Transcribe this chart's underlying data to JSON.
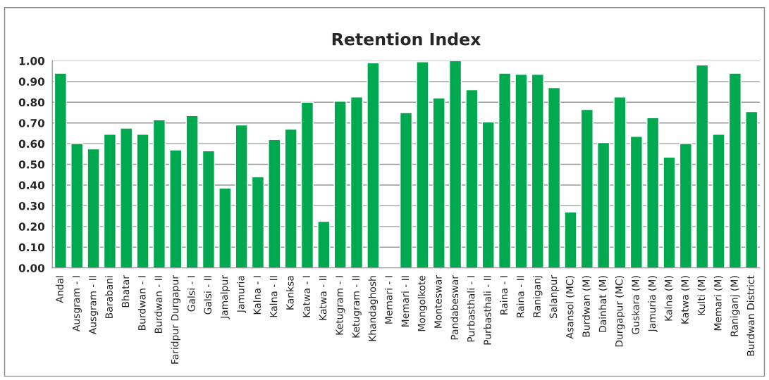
{
  "chart_data": {
    "type": "bar",
    "title": "Retention Index",
    "categories": [
      "Andal",
      "Ausgram - I",
      "Ausgram - II",
      "Barabani",
      "Bhatar",
      "Burdwan - I",
      "Burdwan - II",
      "Faridpur Durgapur",
      "Galsi - I",
      "Galsi - II",
      "Jamalpur",
      "Jamuria",
      "Kalna - I",
      "Kalna - II",
      "Kanksa",
      "Katwa - I",
      "Katwa - II",
      "Ketugram - I",
      "Ketugram - II",
      "Khandaghosh",
      "Memari - I",
      "Memari - II",
      "Mongolkote",
      "Monteswar",
      "Pandabeswar",
      "Purbasthali - I",
      "Purbasthali - II",
      "Raina - I",
      "Raina - II",
      "Raniganj",
      "Salanpur",
      "Asansol (MC)",
      "Burdwan (M)",
      "Dainhat (M)",
      "Durgapur (MC)",
      "Guskara (M)",
      "Jamuria (M)",
      "Kalna (M)",
      "Katwa (M)",
      "Kulti (M)",
      "Memari (M)",
      "Raniganj (M)",
      "Burdwan District"
    ],
    "values": [
      0.94,
      0.6,
      0.575,
      0.645,
      0.675,
      0.645,
      0.715,
      0.57,
      0.735,
      0.565,
      0.385,
      0.69,
      0.44,
      0.62,
      0.67,
      0.8,
      0.225,
      0.805,
      0.825,
      0.99,
      null,
      0.75,
      0.995,
      0.82,
      1.0,
      0.86,
      0.705,
      0.94,
      0.935,
      0.935,
      0.87,
      0.27,
      0.765,
      0.605,
      0.825,
      0.635,
      0.725,
      0.535,
      0.6,
      0.98,
      0.645,
      0.94,
      0.755
    ],
    "color": "#00a84f",
    "ylim": [
      0,
      1
    ],
    "yticks": [
      {
        "value": 0,
        "label": "0.00"
      },
      {
        "value": 0.1,
        "label": "0.10"
      },
      {
        "value": 0.2,
        "label": "0.20"
      },
      {
        "value": 0.3,
        "label": "0.30"
      },
      {
        "value": 0.4,
        "label": "0.40"
      },
      {
        "value": 0.5,
        "label": "0.50"
      },
      {
        "value": 0.6,
        "label": "0.60"
      },
      {
        "value": 0.7,
        "label": "0.70"
      },
      {
        "value": 0.8,
        "label": "0.80"
      },
      {
        "value": 0.9,
        "label": "0.90"
      },
      {
        "value": 1,
        "label": "1.00"
      }
    ],
    "grid": "y",
    "legend": false
  }
}
